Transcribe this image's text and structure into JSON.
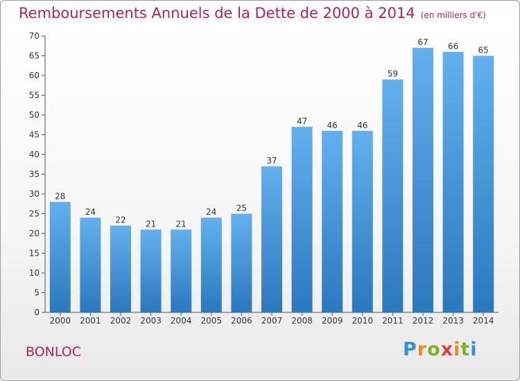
{
  "page": {
    "commune": "BONLOC",
    "logo": "Proxiti"
  },
  "chart_data": {
    "type": "bar",
    "title": "Remboursements Annuels de la Dette de 2000 à 2014",
    "unit_label": "(en milliers d'€)",
    "categories": [
      "2000",
      "2001",
      "2002",
      "2003",
      "2004",
      "2005",
      "2006",
      "2007",
      "2008",
      "2009",
      "2010",
      "2011",
      "2012",
      "2013",
      "2014"
    ],
    "values": [
      28,
      24,
      22,
      21,
      21,
      24,
      25,
      37,
      47,
      46,
      46,
      59,
      67,
      66,
      65
    ],
    "ylim": [
      0,
      70
    ],
    "yticks": [
      0,
      5,
      10,
      15,
      20,
      25,
      30,
      35,
      40,
      45,
      50,
      55,
      60,
      65,
      70
    ],
    "grid": false,
    "bar_color": "#3a8fd6"
  }
}
